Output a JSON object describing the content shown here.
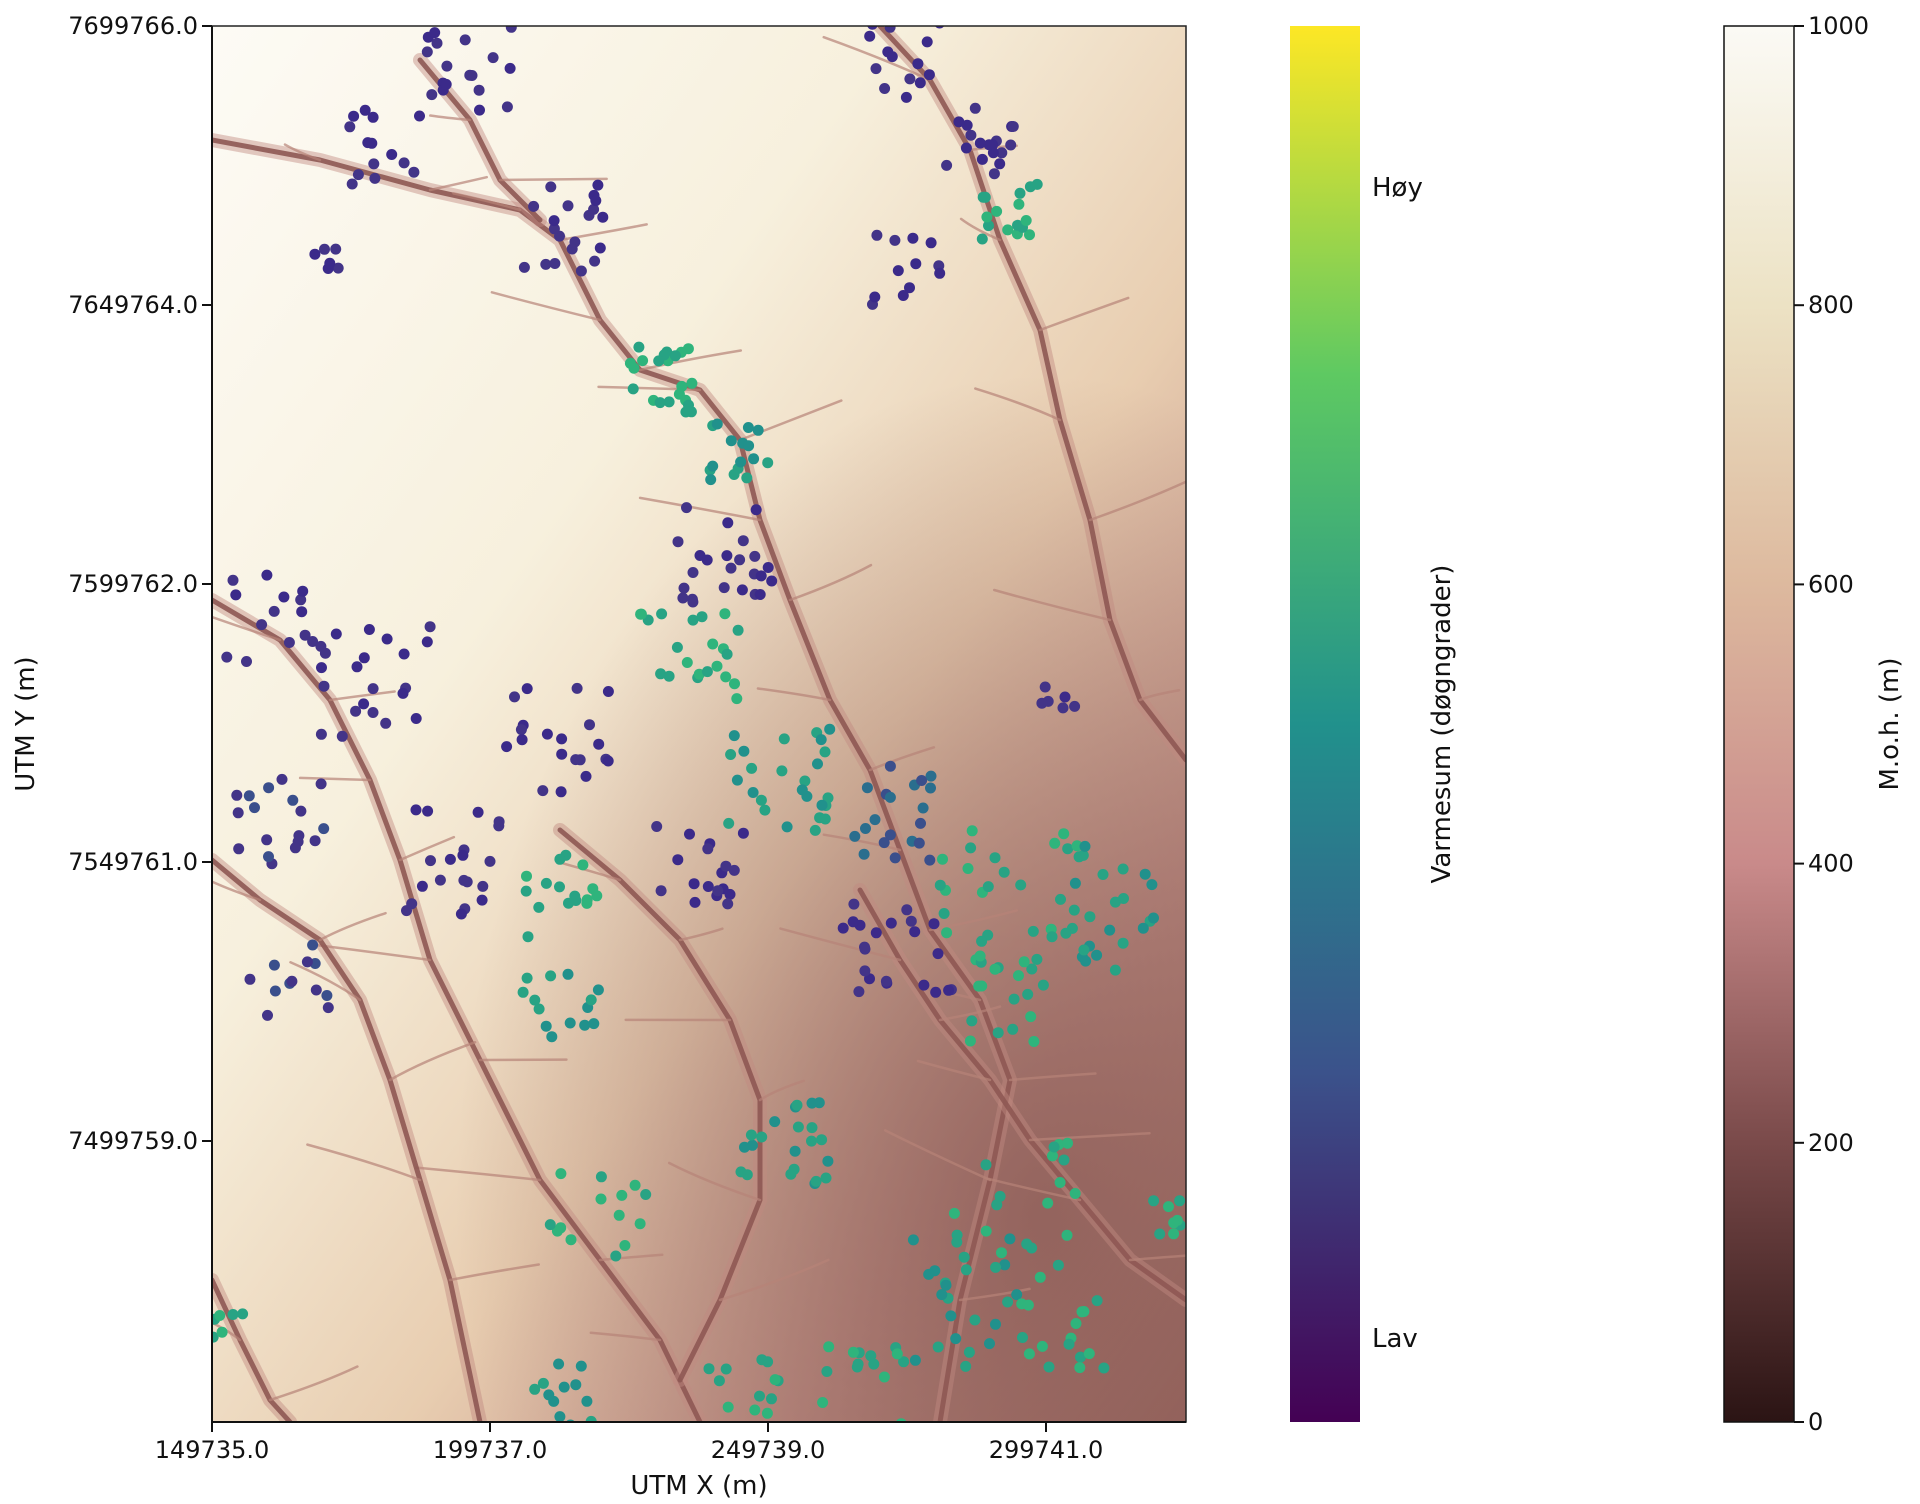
{
  "map": {
    "x_axis": {
      "label": "UTM X (m)",
      "ticks": [
        "149735.0",
        "199737.0",
        "249739.0",
        "299741.0"
      ]
    },
    "y_axis": {
      "label": "UTM Y (m)",
      "ticks": [
        "7699766.0",
        "7649764.0",
        "7599762.0",
        "7549761.0",
        "7499759.0"
      ]
    }
  },
  "temp_colorbar": {
    "label": "Varmesum (døgngrader)",
    "high_label": "Høy",
    "low_label": "Lav",
    "colormap": [
      "#440154",
      "#3b528b",
      "#21918c",
      "#5ec962",
      "#fde725"
    ]
  },
  "elev_colorbar": {
    "label": "M.o.h. (m)",
    "ticks": [
      "0",
      "200",
      "400",
      "600",
      "800",
      "1000"
    ],
    "colormap": [
      "#2b1414",
      "#7a4a4a",
      "#c98a8a",
      "#ddb99e",
      "#ece2c4",
      "#fbfaf5"
    ]
  },
  "colors": {
    "terrain_high": "#fbf8ef",
    "terrain_mid": "#e6cfa6",
    "terrain_low": "#a66c64",
    "valley": "#5e3434"
  }
}
